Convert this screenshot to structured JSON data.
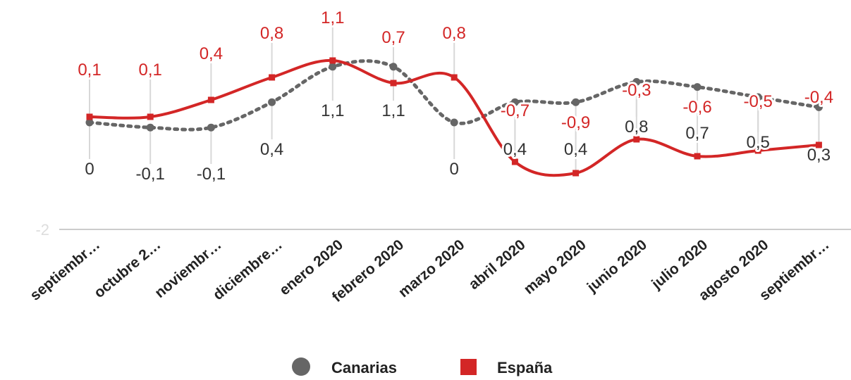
{
  "chart_data": {
    "type": "line",
    "categories": [
      "septiembr…",
      "octubre 2…",
      "noviembr…",
      "diciembre…",
      "enero 2020",
      "febrero 2020",
      "marzo 2020",
      "abril 2020",
      "mayo 2020",
      "junio 2020",
      "julio 2020",
      "agosto 2020",
      "septiembr…"
    ],
    "series": [
      {
        "name": "Canarias",
        "values": [
          0,
          -0.1,
          -0.1,
          0.4,
          1.1,
          1.1,
          0,
          0.4,
          0.4,
          0.8,
          0.7,
          0.5,
          0.3
        ],
        "labels": [
          "0",
          "-0,1",
          "-0,1",
          "0,4",
          "1,1",
          "1,1",
          "0",
          "0,4",
          "0,4",
          "0,8",
          "0,7",
          "0,5",
          "0,3"
        ],
        "color": "#666666",
        "style": "dotted",
        "marker": "circle"
      },
      {
        "name": "España",
        "values": [
          0.1,
          0.1,
          0.4,
          0.8,
          1.1,
          0.7,
          0.8,
          -0.7,
          -0.9,
          -0.3,
          -0.6,
          -0.5,
          -0.4
        ],
        "labels": [
          "0,1",
          "0,1",
          "0,4",
          "0,8",
          "1,1",
          "0,7",
          "0,8",
          "-0,7",
          "-0,9",
          "-0,3",
          "-0,6",
          "-0,5",
          "-0,4"
        ],
        "color": "#d32626",
        "style": "solid",
        "marker": "square"
      }
    ],
    "y_ticks": [
      {
        "value": -2,
        "label": "-2"
      }
    ],
    "ylim": [
      -2,
      1.5
    ],
    "legend_position": "bottom-center",
    "grid": false
  }
}
